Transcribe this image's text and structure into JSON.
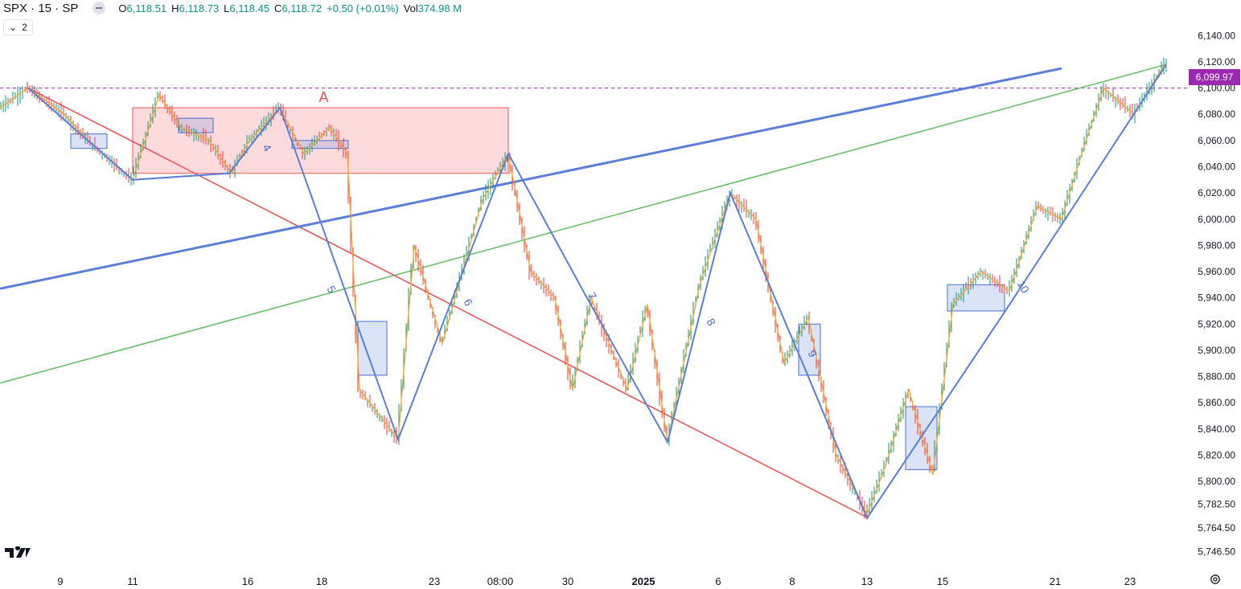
{
  "header": {
    "symbol": "SPX · 15 · SP",
    "open_key": "O",
    "open": "6,118.51",
    "high_key": "H",
    "high": "6,118.73",
    "low_key": "L",
    "low": "6,118.45",
    "close_key": "C",
    "close": "6,118.72",
    "change": "+0.50 (+0.01%)",
    "vol_key": "Vol",
    "volume": "374.98 M",
    "indicator_count": "2"
  },
  "price_tag": "6,099.97",
  "colors": {
    "up": "#089981",
    "down": "#f23645",
    "wave": "#5b7fd6",
    "fast": "#f5a623",
    "red_line": "#e8575c",
    "green_line": "#6bbf6b",
    "tag": "#9c27b0"
  },
  "icons": {
    "logo": "tradingview-logo-icon",
    "settings": "gear-icon",
    "visibility": "minus-icon"
  },
  "chart_data": {
    "type": "candlestick",
    "title": "SPX · 15 · SP",
    "ylim": [
      5740,
      6150
    ],
    "y_ticks": [
      "6,140.00",
      "6,120.00",
      "6,100.00",
      "6,080.00",
      "6,060.00",
      "6,040.00",
      "6,020.00",
      "6,000.00",
      "5,980.00",
      "5,960.00",
      "5,940.00",
      "5,920.00",
      "5,900.00",
      "5,880.00",
      "5,860.00",
      "5,840.00",
      "5,820.00",
      "5,800.00",
      "5,782.50",
      "5,764.50",
      "5,746.50"
    ],
    "y_tick_values": [
      6140,
      6120,
      6100,
      6080,
      6060,
      6040,
      6020,
      6000,
      5980,
      5960,
      5940,
      5920,
      5900,
      5880,
      5860,
      5840,
      5820,
      5800,
      5782.5,
      5764.5,
      5746.5
    ],
    "x_ticks": [
      "9",
      "11",
      "16",
      "18",
      "23",
      "08:00",
      "30",
      "2025",
      "6",
      "8",
      "13",
      "15",
      "21",
      "23"
    ],
    "x_tick_bar_index": [
      75,
      165,
      308,
      400,
      540,
      622,
      706,
      800,
      893,
      985,
      1078,
      1172,
      1312,
      1405
    ],
    "price_series_bar_index": [
      0,
      35,
      80,
      110,
      165,
      198,
      225,
      260,
      288,
      310,
      348,
      378,
      410,
      432,
      447,
      495,
      515,
      550,
      600,
      632,
      660,
      690,
      712,
      735,
      780,
      805,
      830,
      870,
      908,
      940,
      975,
      1005,
      1040,
      1078,
      1100,
      1130,
      1160,
      1185,
      1220,
      1255,
      1290,
      1320,
      1345,
      1372,
      1410,
      1448
    ],
    "price_series": [
      6085,
      6100,
      6080,
      6060,
      6030,
      6095,
      6070,
      6060,
      6035,
      6060,
      6085,
      6050,
      6070,
      6050,
      5870,
      5832,
      5980,
      5905,
      6015,
      6050,
      5960,
      5940,
      5870,
      5940,
      5870,
      5935,
      5830,
      5950,
      6020,
      6000,
      5890,
      5925,
      5820,
      5775,
      5810,
      5870,
      5805,
      5935,
      5960,
      5945,
      6010,
      6000,
      6050,
      6100,
      6080,
      6118
    ],
    "wave_path_bar_index": [
      35,
      165,
      285,
      348,
      495,
      632,
      728,
      830,
      908,
      1005,
      1078,
      1250,
      1450
    ],
    "wave_path": [
      6100,
      6030,
      6035,
      6085,
      5832,
      6050,
      5942,
      5830,
      6020,
      5880,
      5772,
      5930,
      6118
    ],
    "wave_labels": [
      {
        "label": "4",
        "bar_index": 328,
        "price": 6053
      },
      {
        "label": "5",
        "bar_index": 408,
        "price": 5945
      },
      {
        "label": "6",
        "bar_index": 578,
        "price": 5935
      },
      {
        "label": "7",
        "bar_index": 732,
        "price": 5940
      },
      {
        "label": "8",
        "bar_index": 880,
        "price": 5920
      },
      {
        "label": "9",
        "bar_index": 1006,
        "price": 5896
      },
      {
        "label": "10",
        "bar_index": 1268,
        "price": 5947
      }
    ],
    "trend_red": {
      "from_bar": 35,
      "from": 6100,
      "to_bar": 1080,
      "to": 5772
    },
    "trend_green": {
      "from_bar": 0,
      "from": 5875,
      "to_bar": 1450,
      "to": 6118
    },
    "trend_blue": {
      "from_bar": 0,
      "from": 5947,
      "to_bar": 1320,
      "to": 6115
    },
    "horizontal_level": 6099.97,
    "zone_a": {
      "label": "A",
      "from_bar": 165,
      "to_bar": 632,
      "top": 6085,
      "bottom": 6035
    },
    "boxes": [
      {
        "from_bar": 88,
        "to_bar": 133,
        "top": 6065,
        "bottom": 6054
      },
      {
        "from_bar": 222,
        "to_bar": 265,
        "top": 6077,
        "bottom": 6066
      },
      {
        "from_bar": 363,
        "to_bar": 433,
        "top": 6060,
        "bottom": 6054
      },
      {
        "from_bar": 445,
        "to_bar": 481,
        "top": 5922,
        "bottom": 5881
      },
      {
        "from_bar": 993,
        "to_bar": 1020,
        "top": 5920,
        "bottom": 5881
      },
      {
        "from_bar": 1126,
        "to_bar": 1165,
        "top": 5857,
        "bottom": 5809
      },
      {
        "from_bar": 1178,
        "to_bar": 1249,
        "top": 5950,
        "bottom": 5930
      }
    ],
    "last_bar_index": 1450
  }
}
